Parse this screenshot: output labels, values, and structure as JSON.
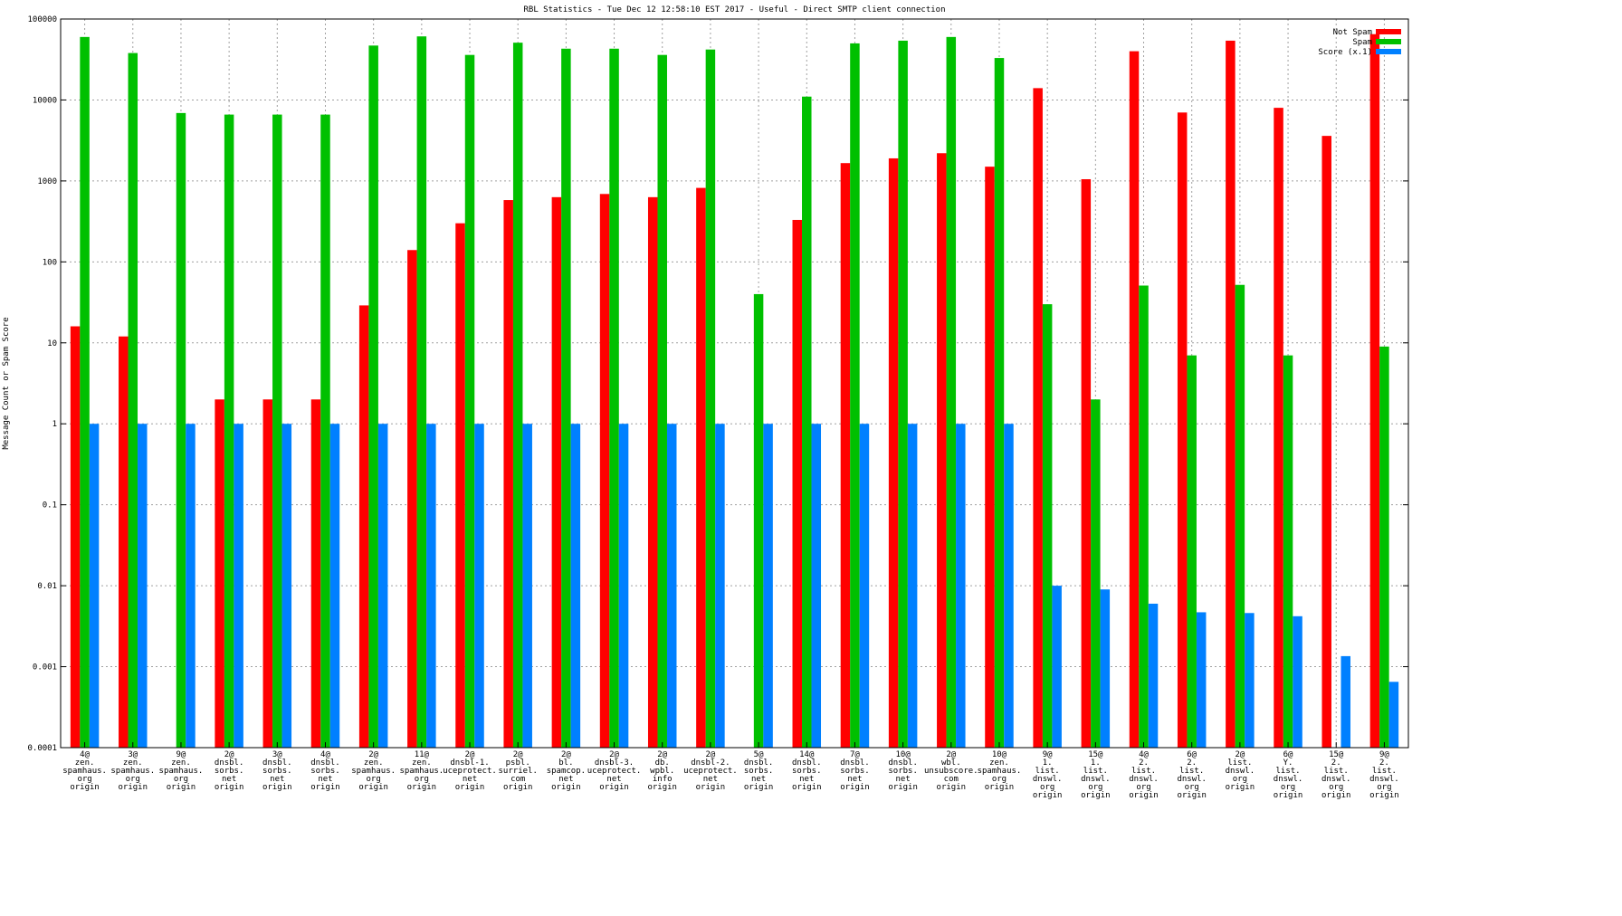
{
  "chart_data": {
    "type": "bar",
    "title": "RBL Statistics - Tue Dec 12 12:58:10 EST 2017 - Useful - Direct SMTP client connection",
    "xlabel": "",
    "ylabel": "Message Count or Spam Score",
    "yscale": "log",
    "ylim": [
      0.0001,
      100000
    ],
    "yticks": [
      "0.0001",
      "0.001",
      "0.01",
      "0.1",
      "1",
      "10",
      "100",
      "1000",
      "10000",
      "100000"
    ],
    "grid": true,
    "legend_position": "top-right",
    "categories": [
      [
        "4@",
        "zen.",
        "spamhaus.",
        "org",
        "origin"
      ],
      [
        "3@",
        "zen.",
        "spamhaus.",
        "org",
        "origin"
      ],
      [
        "9@",
        "zen.",
        "spamhaus.",
        "org",
        "origin"
      ],
      [
        "2@",
        "dnsbl.",
        "sorbs.",
        "net",
        "origin"
      ],
      [
        "3@",
        "dnsbl.",
        "sorbs.",
        "net",
        "origin"
      ],
      [
        "4@",
        "dnsbl.",
        "sorbs.",
        "net",
        "origin"
      ],
      [
        "2@",
        "zen.",
        "spamhaus.",
        "org",
        "origin"
      ],
      [
        "11@",
        "zen.",
        "spamhaus.",
        "org",
        "origin"
      ],
      [
        "2@",
        "dnsbl-1.",
        "uceprotect.",
        "net",
        "origin"
      ],
      [
        "2@",
        "psbl.",
        "surriel.",
        "com",
        "origin"
      ],
      [
        "2@",
        "bl.",
        "spamcop.",
        "net",
        "origin"
      ],
      [
        "2@",
        "dnsbl-3.",
        "uceprotect.",
        "net",
        "origin"
      ],
      [
        "2@",
        "db.",
        "wpbl.",
        "info",
        "origin"
      ],
      [
        "2@",
        "dnsbl-2.",
        "uceprotect.",
        "net",
        "origin"
      ],
      [
        "5@",
        "dnsbl.",
        "sorbs.",
        "net",
        "origin"
      ],
      [
        "14@",
        "dnsbl.",
        "sorbs.",
        "net",
        "origin"
      ],
      [
        "7@",
        "dnsbl.",
        "sorbs.",
        "net",
        "origin"
      ],
      [
        "10@",
        "dnsbl.",
        "sorbs.",
        "net",
        "origin"
      ],
      [
        "2@",
        "wbl.",
        "unsubscore.",
        "com",
        "origin"
      ],
      [
        "10@",
        "zen.",
        "spamhaus.",
        "org",
        "origin"
      ],
      [
        "9@",
        "1.",
        "list.",
        "dnswl.",
        "org",
        "origin"
      ],
      [
        "15@",
        "1.",
        "list.",
        "dnswl.",
        "org",
        "origin"
      ],
      [
        "4@",
        "2.",
        "list.",
        "dnswl.",
        "org",
        "origin"
      ],
      [
        "6@",
        "2.",
        "list.",
        "dnswl.",
        "org",
        "origin"
      ],
      [
        "2@",
        "list.",
        "dnswl.",
        "org",
        "origin"
      ],
      [
        "6@",
        "Y.",
        "list.",
        "dnswl.",
        "org",
        "origin"
      ],
      [
        "15@",
        "2.",
        "list.",
        "dnswl.",
        "org",
        "origin"
      ],
      [
        "9@",
        "2.",
        "list.",
        "dnswl.",
        "org",
        "origin"
      ]
    ],
    "series": [
      {
        "name": "Not Spam",
        "color": "#ff0000",
        "values": [
          16,
          12,
          null,
          2,
          2,
          2,
          29,
          140,
          300,
          580,
          630,
          690,
          630,
          820,
          null,
          330,
          1660,
          1900,
          2200,
          1500,
          14000,
          1050,
          40000,
          7000,
          54000,
          8000,
          3600,
          65000
        ]
      },
      {
        "name": "Spam",
        "color": "#00c000",
        "values": [
          60000,
          38000,
          6900,
          6600,
          6600,
          6600,
          47000,
          61000,
          36000,
          51000,
          43000,
          43000,
          36000,
          42000,
          40,
          11000,
          50000,
          54000,
          60000,
          33000,
          30,
          2,
          51,
          7,
          52,
          7,
          null,
          9
        ]
      },
      {
        "name": "Score (x.1)",
        "color": "#0080ff",
        "values": [
          1,
          1,
          1,
          1,
          1,
          1,
          1,
          1,
          1,
          1,
          1,
          1,
          1,
          1,
          1,
          1,
          1,
          1,
          1,
          1,
          0.01,
          0.009,
          0.006,
          0.0047,
          0.0046,
          0.0042,
          0.00135,
          0.00065
        ]
      }
    ]
  }
}
